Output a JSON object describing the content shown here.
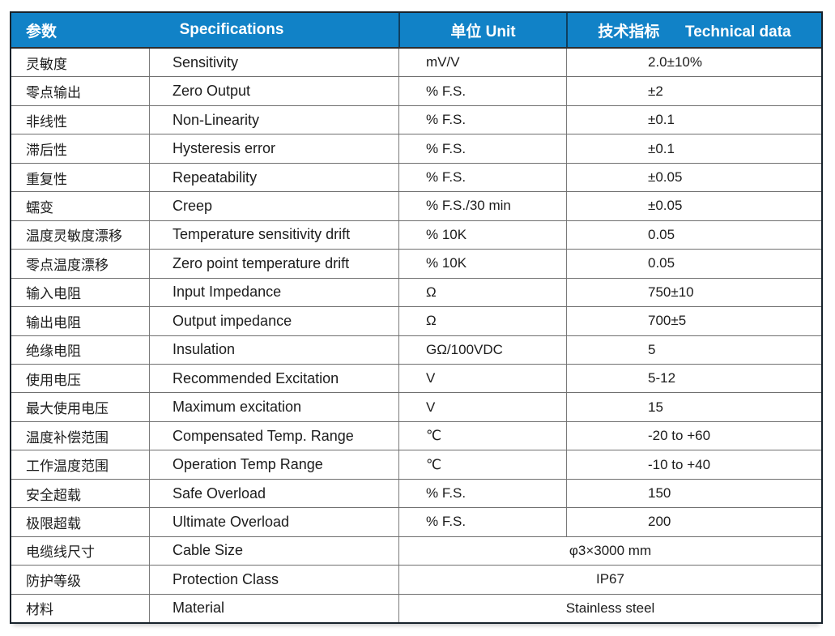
{
  "colors": {
    "header_bg": "#1182c7",
    "header_text": "#ffffff",
    "header_divider": "#0e3f60",
    "outer_border": "#17222b",
    "grid_line": "#6f6f6f",
    "body_text": "#1c1c1c",
    "page_bg": "#ffffff"
  },
  "table": {
    "headers": [
      "参数",
      "Specifications",
      "单位 Unit",
      "技术指标      Technical data"
    ],
    "rows": [
      {
        "zh": "灵敏度",
        "en": "Sensitivity",
        "unit": "mV/V",
        "value": "2.0±10%"
      },
      {
        "zh": "零点输出",
        "en": "Zero Output",
        "unit": "% F.S.",
        "value": "±2"
      },
      {
        "zh": "非线性",
        "en": "Non-Linearity",
        "unit": "% F.S.",
        "value": "±0.1"
      },
      {
        "zh": "滞后性",
        "en": "Hysteresis error",
        "unit": "% F.S.",
        "value": "±0.1"
      },
      {
        "zh": "重复性",
        "en": "Repeatability",
        "unit": "% F.S.",
        "value": "±0.05"
      },
      {
        "zh": "蠕变",
        "en": "Creep",
        "unit": "% F.S./30 min",
        "value": "±0.05"
      },
      {
        "zh": "温度灵敏度漂移",
        "en": "Temperature sensitivity drift",
        "unit": "% 10K",
        "value": "0.05"
      },
      {
        "zh": "零点温度漂移",
        "en": "Zero point temperature drift",
        "unit": "% 10K",
        "value": "0.05"
      },
      {
        "zh": "输入电阻",
        "en": "Input Impedance",
        "unit": "Ω",
        "value": "750±10"
      },
      {
        "zh": "输出电阻",
        "en": "Output impedance",
        "unit": "Ω",
        "value": "700±5"
      },
      {
        "zh": "绝缘电阻",
        "en": "Insulation",
        "unit": "GΩ/100VDC",
        "value": "5"
      },
      {
        "zh": "使用电压",
        "en": "Recommended Excitation",
        "unit": "V",
        "value": "5-12"
      },
      {
        "zh": "最大使用电压",
        "en": "Maximum excitation",
        "unit": "V",
        "value": "15"
      },
      {
        "zh": "温度补偿范围",
        "en": "Compensated Temp. Range",
        "unit": "℃",
        "value": "-20 to +60"
      },
      {
        "zh": "工作温度范围",
        "en": "Operation Temp Range",
        "unit": "℃",
        "value": "-10 to +40"
      },
      {
        "zh": "安全超载",
        "en": "Safe Overload",
        "unit": "% F.S.",
        "value": "150"
      },
      {
        "zh": "极限超载",
        "en": "Ultimate Overload",
        "unit": "% F.S.",
        "value": "200"
      },
      {
        "zh": "电缆线尺寸",
        "en": "Cable Size",
        "merged": "φ3×3000 mm"
      },
      {
        "zh": "防护等级",
        "en": "Protection Class",
        "merged": "IP67"
      },
      {
        "zh": "材料",
        "en": "Material",
        "merged": "Stainless steel"
      }
    ]
  }
}
